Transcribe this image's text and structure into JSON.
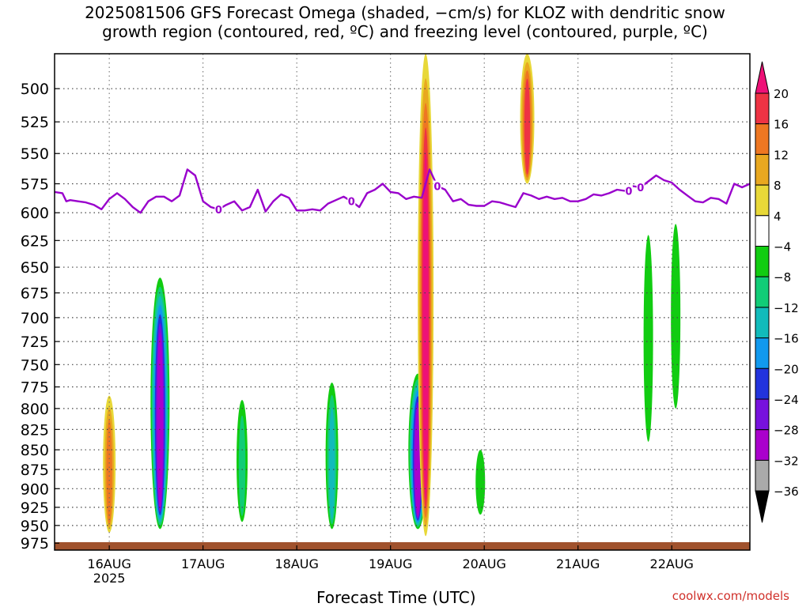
{
  "title_line1": "2025081506 GFS Forecast Omega (shaded, −cm/s) for KLOZ with dendritic snow",
  "title_line2": "growth region (contoured, red, ºC) and freezing level (contoured, purple, ºC)",
  "credit": "coolwx.com/models",
  "chart_data": {
    "type": "heatmap",
    "xlabel": "Forecast Time (UTC)",
    "ylabel": "",
    "x_tick_labels": [
      "16AUG",
      "17AUG",
      "18AUG",
      "19AUG",
      "20AUG",
      "21AUG",
      "22AUG"
    ],
    "x_year_label": "2025",
    "x_range_hours": [
      -14,
      164
    ],
    "y_ticks": [
      500,
      525,
      550,
      575,
      600,
      625,
      650,
      675,
      700,
      725,
      750,
      775,
      800,
      825,
      850,
      875,
      900,
      925,
      950,
      975
    ],
    "y_range_hpa": [
      475,
      985
    ],
    "y_scale": "log-pressure",
    "grid": true,
    "colorbar": {
      "ticks": [
        20,
        16,
        12,
        8,
        4,
        -4,
        -8,
        -12,
        -16,
        -20,
        -24,
        -28,
        -32,
        -36
      ],
      "colors": {
        "c20": "#ee1177",
        "c16": "#ee3344",
        "c12": "#ee7722",
        "c8": "#e8a820",
        "c4": "#e8d838",
        "c0": "#ffffff",
        "cm4": "#11cc11",
        "cm8": "#11cc77",
        "cm12": "#11bbbb",
        "cm16": "#1199ee",
        "cm20": "#2233dd",
        "cm24": "#7711dd",
        "cm28": "#aa00cc",
        "cm32": "#aaaaaa",
        "cm36": "#000000"
      }
    },
    "freezing_level": {
      "color": "#9900cc",
      "label": "0",
      "hours": [
        -14,
        -12,
        -11,
        -10,
        -8,
        -6,
        -4,
        -2,
        0,
        2,
        4,
        6,
        8,
        10,
        12,
        14,
        16,
        18,
        20,
        22,
        24,
        26,
        28,
        30,
        32,
        34,
        36,
        38,
        40,
        42,
        44,
        46,
        48,
        50,
        52,
        54,
        56,
        58,
        60,
        62,
        64,
        66,
        68,
        70,
        72,
        74,
        76,
        78,
        80,
        82,
        84,
        86,
        88,
        90,
        92,
        94,
        96,
        98,
        100,
        102,
        104,
        106,
        108,
        110,
        112,
        114,
        116,
        118,
        120,
        122,
        124,
        126,
        128,
        130,
        132,
        134,
        136,
        138,
        140,
        142,
        144,
        146,
        148,
        150,
        152,
        154,
        156,
        158,
        160,
        162,
        164
      ],
      "hpa": [
        582,
        583,
        590,
        589,
        590,
        591,
        593,
        597,
        588,
        583,
        588,
        595,
        600,
        590,
        586,
        586,
        590,
        585,
        563,
        568,
        590,
        595,
        597,
        593,
        590,
        598,
        595,
        580,
        599,
        590,
        584,
        587,
        598,
        598,
        597,
        598,
        592,
        589,
        586,
        590,
        595,
        583,
        580,
        575,
        582,
        583,
        588,
        586,
        587,
        563,
        577,
        580,
        590,
        588,
        593,
        594,
        594,
        590,
        591,
        593,
        595,
        583,
        585,
        588,
        586,
        588,
        587,
        590,
        590,
        588,
        584,
        585,
        583,
        580,
        581,
        577,
        578,
        573,
        568,
        572,
        574,
        580,
        585,
        590,
        591,
        587,
        588,
        592,
        575,
        578,
        575
      ]
    },
    "omega_features": [
      {
        "t": 0,
        "p_top": 785,
        "p_bot": 960,
        "level": 12
      },
      {
        "t": 13,
        "p_top": 660,
        "p_bot": 955,
        "level": -28
      },
      {
        "t": 34,
        "p_top": 790,
        "p_bot": 945,
        "level": -8
      },
      {
        "t": 57,
        "p_top": 770,
        "p_bot": 955,
        "level": -12
      },
      {
        "t": 79,
        "p_top": 760,
        "p_bot": 955,
        "level": -28
      },
      {
        "t": 81,
        "p_top": 200,
        "p_bot": 965,
        "level": 20
      },
      {
        "t": 95,
        "p_top": 850,
        "p_bot": 935,
        "level": -4
      },
      {
        "t": 107,
        "p_top": 475,
        "p_bot": 575,
        "level": 16
      },
      {
        "t": 138,
        "p_top": 620,
        "p_bot": 840,
        "level": -4
      },
      {
        "t": 145,
        "p_top": 610,
        "p_bot": 800,
        "level": -4
      }
    ]
  }
}
